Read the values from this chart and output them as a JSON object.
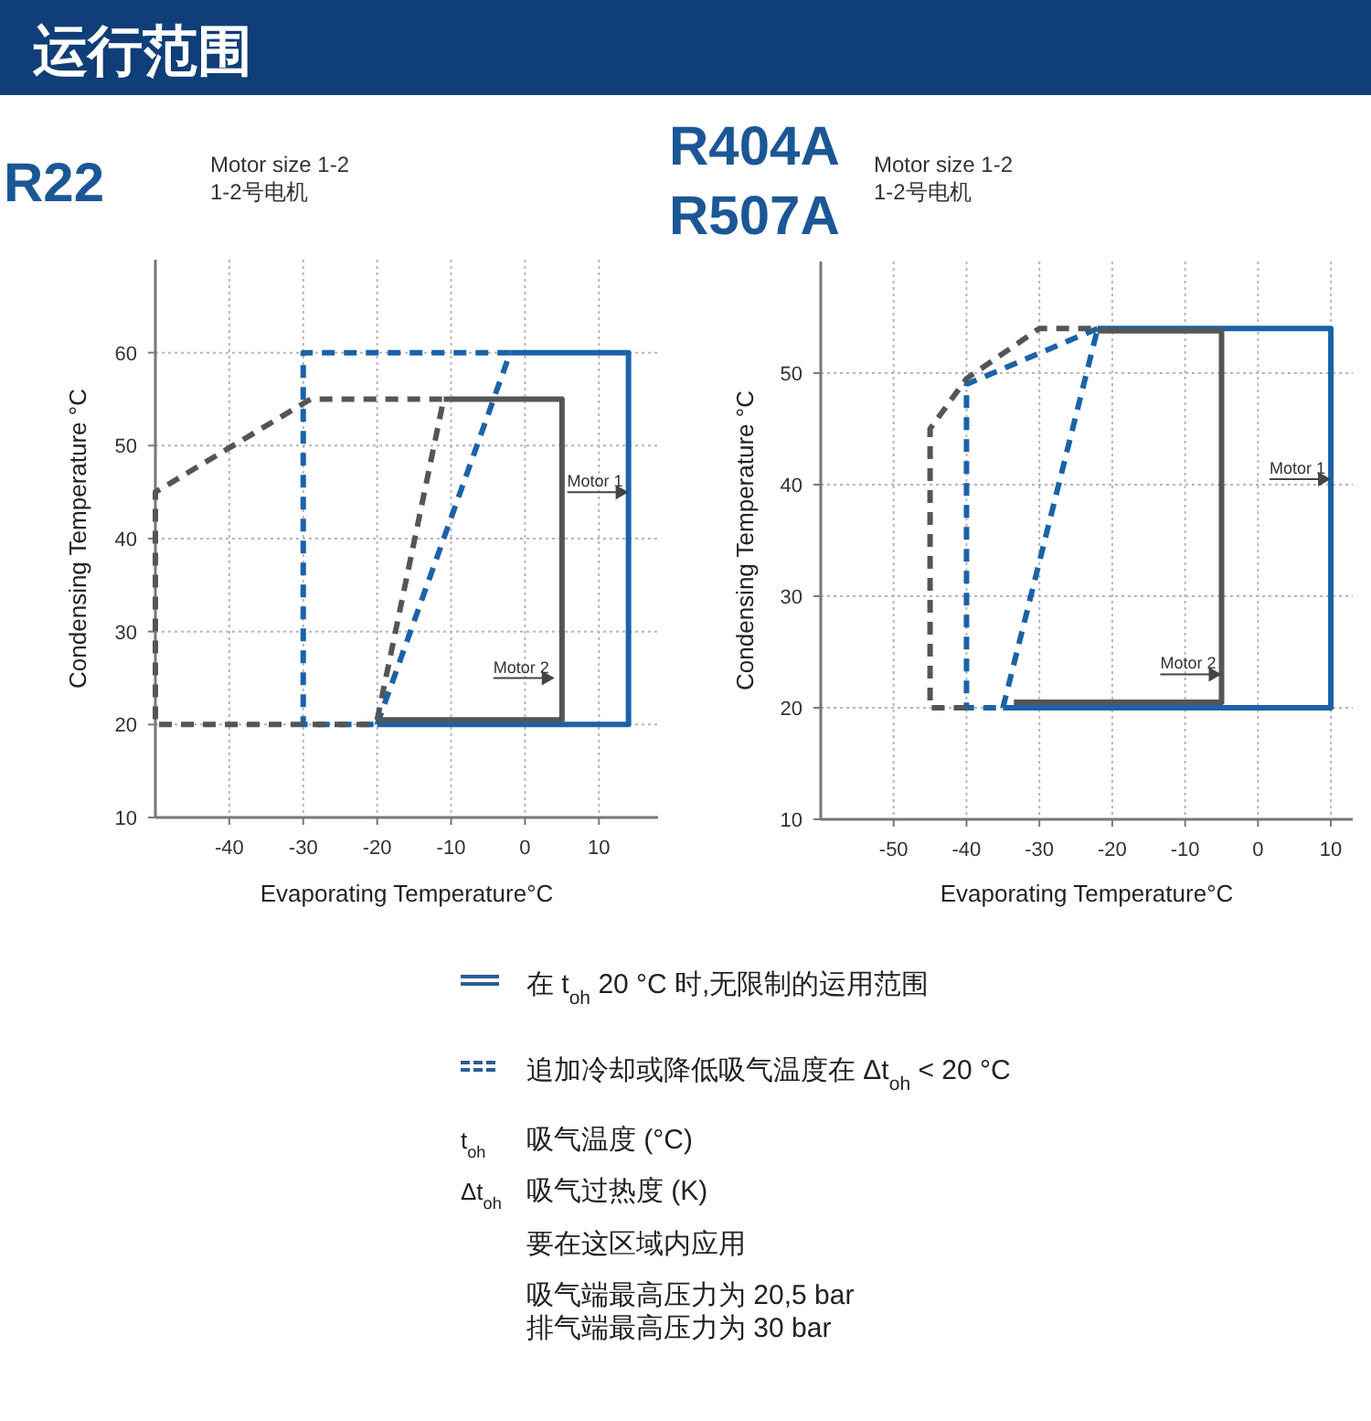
{
  "chart_data": [
    {
      "type": "line",
      "title": "R22",
      "subtitle": "Motor size 1-2\n1-2号电机",
      "xlabel": "Evaporating Temperature°C",
      "ylabel": "Condensing Temperature °C",
      "xlim": [
        -50,
        18
      ],
      "ylim": [
        10,
        70
      ],
      "xticks": [
        -40,
        -30,
        -20,
        -10,
        0,
        10
      ],
      "yticks": [
        10,
        20,
        30,
        40,
        50,
        60
      ],
      "grid": true,
      "series": [
        {
          "color": "#1b62a8",
          "line_style": "solid",
          "x": [
            -2,
            14,
            14,
            -20
          ],
          "values": [
            60,
            60,
            20,
            20
          ]
        },
        {
          "color": "#1b62a8",
          "line_style": "dashed",
          "x": [
            -2,
            -30,
            -30,
            -20
          ],
          "values": [
            60,
            60,
            20,
            20
          ]
        },
        {
          "color": "#1b62a8",
          "line_style": "dashed",
          "x": [
            -20,
            -2
          ],
          "values": [
            20,
            60
          ]
        },
        {
          "color": "#555555",
          "line_style": "solid",
          "x": [
            -11,
            5,
            5,
            -20
          ],
          "values": [
            55,
            55,
            20.5,
            20.5
          ]
        },
        {
          "color": "#555555",
          "line_style": "dashed",
          "x": [
            -20,
            -11,
            -29,
            -50,
            -50,
            -20
          ],
          "values": [
            20.5,
            55,
            55,
            45,
            20,
            20
          ]
        }
      ],
      "annotations": [
        {
          "text": "Motor 1",
          "x": 14,
          "y": 45
        },
        {
          "text": "Motor 2",
          "x": 4,
          "y": 25
        }
      ]
    },
    {
      "type": "line",
      "title": "R404A\nR507A",
      "subtitle": "Motor size 1-2\n1-2号电机",
      "xlabel": "Evaporating Temperature°C",
      "ylabel": "Condensing Temperature °C",
      "xlim": [
        -60,
        13
      ],
      "ylim": [
        10,
        60
      ],
      "xticks": [
        -50,
        -40,
        -30,
        -20,
        -10,
        0,
        10
      ],
      "yticks": [
        10,
        20,
        30,
        40,
        50
      ],
      "grid": true,
      "series": [
        {
          "color": "#1b62a8",
          "line_style": "solid",
          "x": [
            -22,
            10,
            10,
            -35
          ],
          "values": [
            54,
            54,
            20,
            20
          ]
        },
        {
          "color": "#1b62a8",
          "line_style": "dashed",
          "x": [
            -22,
            -40,
            -40,
            -35
          ],
          "values": [
            54,
            49,
            20,
            20
          ]
        },
        {
          "color": "#1b62a8",
          "line_style": "dashed",
          "x": [
            -35,
            -22
          ],
          "values": [
            20,
            54
          ]
        },
        {
          "color": "#555555",
          "line_style": "solid",
          "x": [
            -22,
            -5,
            -5,
            -33.5
          ],
          "values": [
            53.8,
            53.8,
            20.5,
            20.5
          ]
        },
        {
          "color": "#555555",
          "line_style": "dashed",
          "x": [
            -40,
            -45,
            -45,
            -40,
            -30,
            -22
          ],
          "values": [
            20,
            20,
            45,
            49.5,
            54,
            54
          ]
        }
      ],
      "annotations": [
        {
          "text": "Motor 1",
          "x": 10,
          "y": 40.5
        },
        {
          "text": "Motor 2",
          "x": -5,
          "y": 23
        }
      ]
    },
    {
      "type": "other",
      "title": "运行范围",
      "annotations": [
        "在 t$_{oh}$ 20 °C 时,无限制的运用范围",
        "追加冷却或降低吸气温度在 Δt$_{oh}$ < 20 °C",
        "t$_{oh}$",
        "吸气温度 (°C)",
        "Δt$_{oh}$",
        "吸气过热度 (K)",
        "要在这区域内应用",
        "吸气端最高压力为 20,5 bar",
        "排气端最高压力为 30 bar"
      ]
    }
  ]
}
